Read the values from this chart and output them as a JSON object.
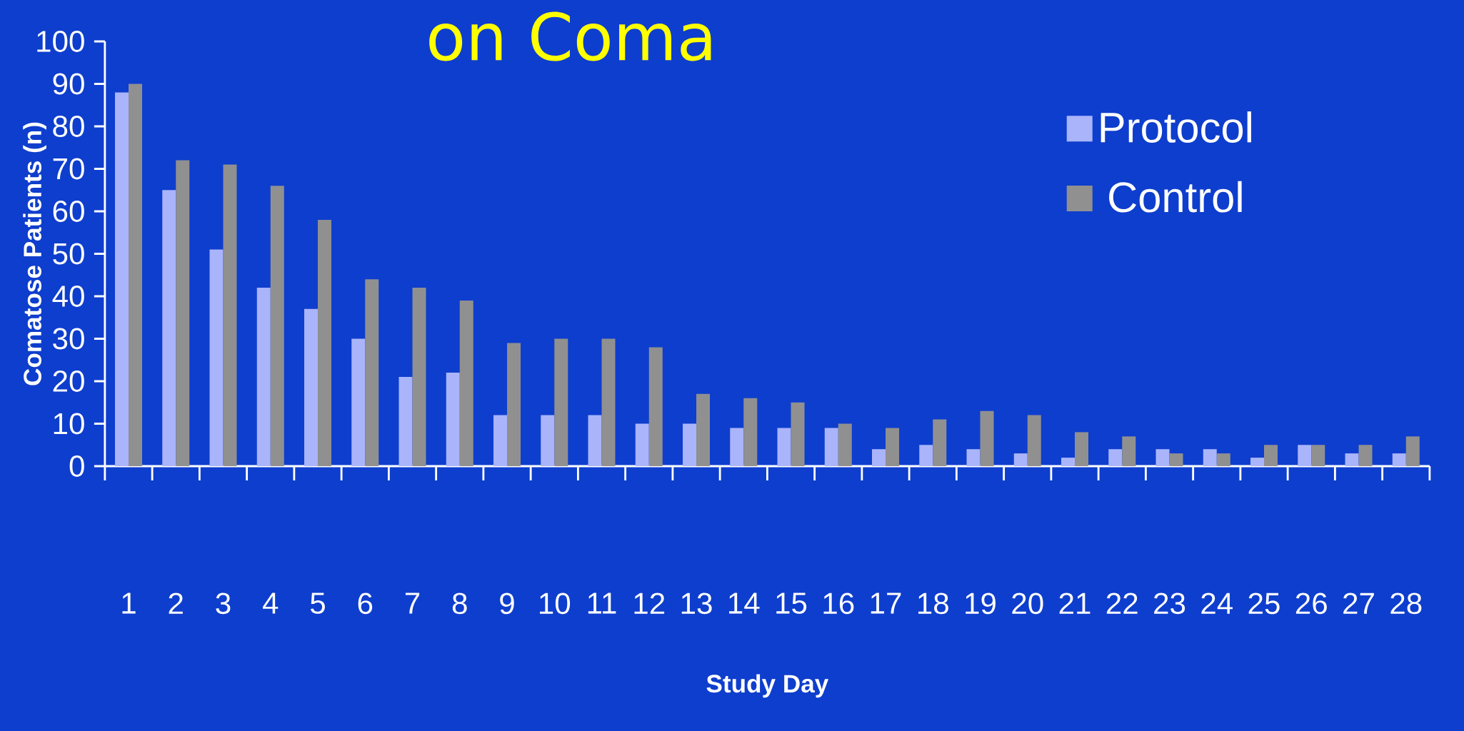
{
  "chart_data": {
    "type": "bar",
    "title": "on Coma",
    "xlabel": "Study Day",
    "ylabel": "Comatose Patients (n)",
    "categories": [
      "1",
      "2",
      "3",
      "4",
      "5",
      "6",
      "7",
      "8",
      "9",
      "10",
      "11",
      "12",
      "13",
      "14",
      "15",
      "16",
      "17",
      "18",
      "19",
      "20",
      "21",
      "22",
      "23",
      "24",
      "25",
      "26",
      "27",
      "28"
    ],
    "series": [
      {
        "name": "Protocol",
        "color": "#aab4fa",
        "values": [
          88,
          65,
          51,
          42,
          37,
          30,
          21,
          22,
          12,
          12,
          12,
          10,
          10,
          9,
          9,
          9,
          4,
          5,
          4,
          3,
          2,
          4,
          4,
          4,
          2,
          5,
          3,
          3
        ]
      },
      {
        "name": "Control",
        "color": "#909090",
        "values": [
          90,
          72,
          71,
          66,
          58,
          44,
          42,
          39,
          29,
          30,
          30,
          28,
          17,
          16,
          15,
          10,
          9,
          11,
          13,
          12,
          8,
          7,
          3,
          3,
          5,
          5,
          5,
          7
        ]
      }
    ],
    "ylim": [
      0,
      100
    ],
    "yticks": [
      0,
      10,
      20,
      30,
      40,
      50,
      60,
      70,
      80,
      90,
      100
    ],
    "legend": "top right"
  }
}
